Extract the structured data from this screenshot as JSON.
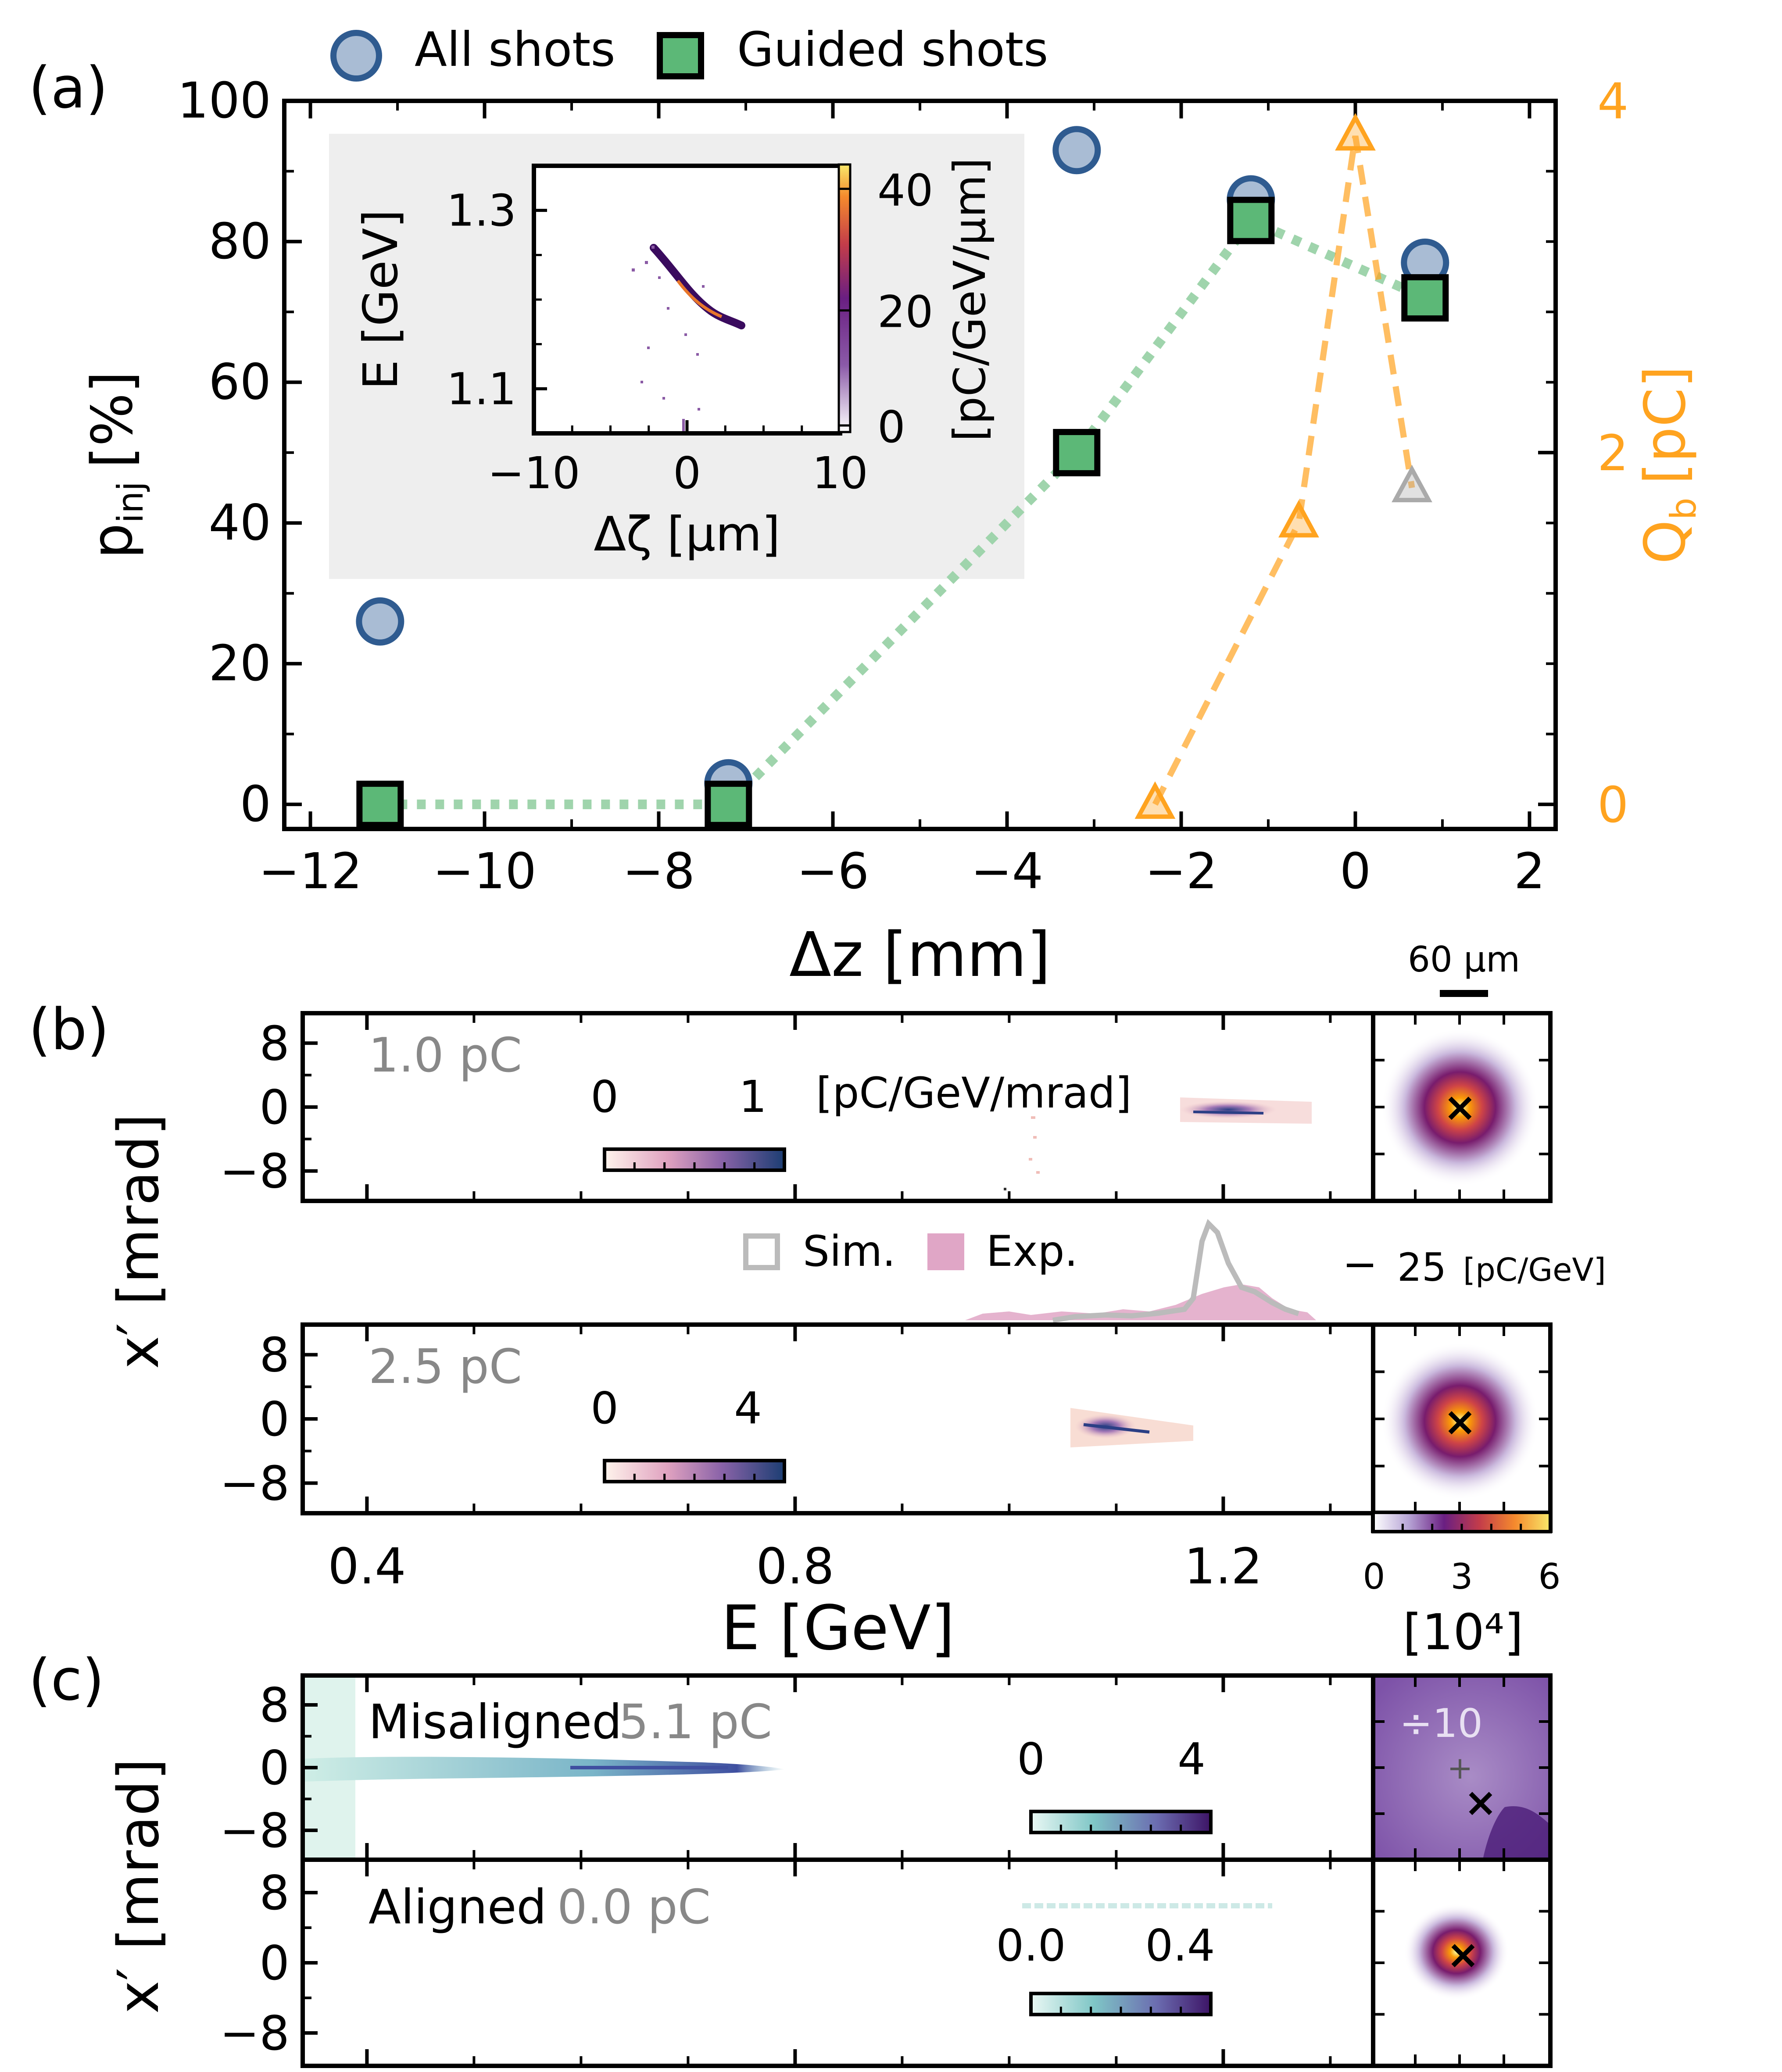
{
  "panel_labels": {
    "a": "(a)",
    "b": "(b)",
    "c": "(c)"
  },
  "colors": {
    "all_shots_fill": "#a9bcd4",
    "all_shots_edge": "#2f5b90",
    "guided_fill": "#5cb877",
    "guided_edge": "#000000",
    "guided_line": "#9fd4ac",
    "charge": "#ffa31f",
    "charge_gray": "#aaaaaa",
    "inset_bg": "#eeeeee",
    "sim_line": "#bbbbbb",
    "exp_fill": "#e0a6c6"
  },
  "chart_data": [
    {
      "id": "a",
      "type": "scatter",
      "title": "",
      "xlabel": "Δz [mm]",
      "ylabel": "p_inj [%]",
      "ylabel_parts": {
        "main": "p",
        "sub": "inj",
        "unit": "[%]"
      },
      "y2label": "Q_b [pC]",
      "y2label_parts": {
        "main": "Q",
        "sub": "b",
        "unit": "[pC]"
      },
      "xlim": [
        -12.3,
        2.3
      ],
      "ylim": [
        -3.5,
        100
      ],
      "y2lim": [
        -0.14,
        4.0
      ],
      "xticks": [
        -12,
        -10,
        -8,
        -6,
        -4,
        -2,
        0,
        2
      ],
      "xtick_labels": [
        "−12",
        "−10",
        "−8",
        "−6",
        "−4",
        "−2",
        "0",
        "2"
      ],
      "yticks": [
        0,
        20,
        40,
        60,
        80,
        100
      ],
      "y2ticks": [
        0,
        2,
        4
      ],
      "legend": {
        "placement": "top",
        "entries": [
          "All shots",
          "Guided shots"
        ]
      },
      "series": [
        {
          "name": "All shots",
          "marker": "circle",
          "x": [
            -11.2,
            -7.2,
            -3.2,
            -1.2,
            0.8
          ],
          "y": [
            26,
            3,
            93,
            86,
            77
          ]
        },
        {
          "name": "Guided shots",
          "marker": "square",
          "line": "dotted",
          "x": [
            -11.2,
            -7.2,
            -3.2,
            -1.2,
            0.8
          ],
          "y": [
            0,
            0,
            50,
            83,
            72
          ]
        },
        {
          "name": "Charge",
          "axis": "y2",
          "marker": "triangle",
          "line": "dashed",
          "x": [
            -2.3,
            -0.65,
            0.0
          ],
          "y": [
            0,
            1.6,
            3.8
          ]
        },
        {
          "name": "Charge (gray)",
          "axis": "y2",
          "marker": "triangle",
          "x": [
            0.65
          ],
          "y": [
            1.8
          ]
        }
      ],
      "inset": {
        "type": "heatmap",
        "xlabel": "Δζ [μm]",
        "ylabel": "E [GeV]",
        "xlim": [
          -10,
          10
        ],
        "ylim": [
          1.05,
          1.35
        ],
        "xticks": [
          -10,
          0,
          10
        ],
        "xtick_labels": [
          "−10",
          "0",
          "10"
        ],
        "yticks": [
          1.1,
          1.3
        ],
        "colorbar_label": "[pC/GeV/μm]",
        "colorbar_ticks": [
          0,
          20,
          40
        ]
      }
    },
    {
      "id": "b",
      "type": "heatmap",
      "xlabel": "E [GeV]",
      "ylabel": "x′ [mrad]",
      "xlim": [
        0.34,
        1.34
      ],
      "xticks": [
        0.4,
        0.8,
        1.2
      ],
      "yticks": [
        8,
        0,
        -8
      ],
      "ytick_labels": [
        "8",
        "0",
        "−8"
      ],
      "rows": [
        {
          "charge_label": "1.0 pC",
          "cbar_min": "0",
          "cbar_max": "1",
          "unit": "[pC/GeV/mrad]"
        },
        {
          "charge_label": "2.5 pC",
          "cbar_min": "0",
          "cbar_max": "4"
        }
      ],
      "spectrum": {
        "legend": [
          "Sim.",
          "Exp."
        ],
        "scale_label": "25",
        "scale_unit": "[pC/GeV]"
      },
      "spot": {
        "scalebar_label": "60 μm",
        "colorbar_ticks": [
          "0",
          "3",
          "6"
        ],
        "colorbar_unit": "[10⁴]"
      }
    },
    {
      "id": "c",
      "type": "heatmap",
      "ylabel": "x′ [mrad]",
      "yticks": [
        8,
        0,
        -8
      ],
      "ytick_labels": [
        "8",
        "0",
        "−8"
      ],
      "rows": [
        {
          "name": "Misaligned",
          "charge_label": "5.1 pC",
          "cbar_min": "0",
          "cbar_max": "4",
          "spot_label": "÷10"
        },
        {
          "name": "Aligned",
          "charge_label": "0.0 pC",
          "cbar_min": "0.0",
          "cbar_max": "0.4"
        }
      ]
    }
  ]
}
